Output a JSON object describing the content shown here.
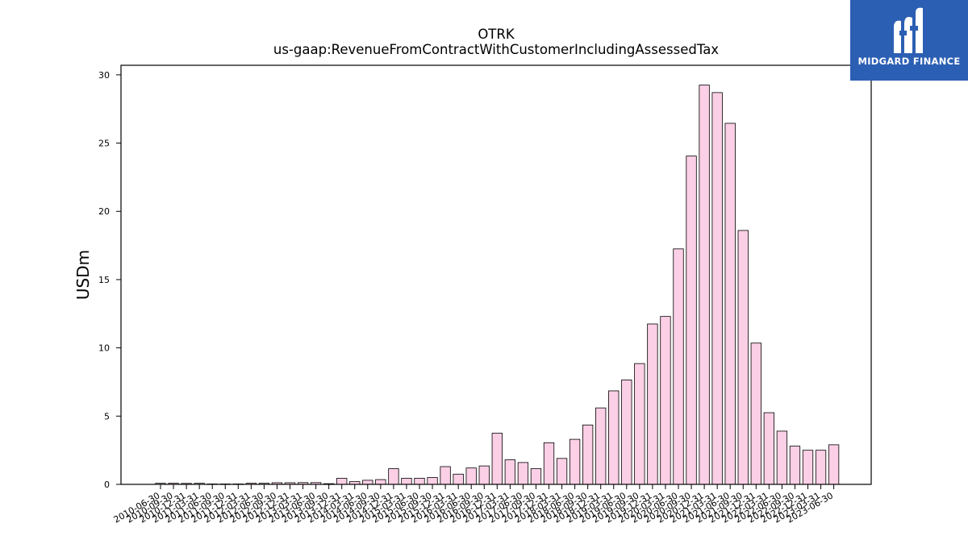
{
  "logo": {
    "text": "MIDGARD FINANCE"
  },
  "colors": {
    "bar_fill": "#fbcfe5",
    "bar_edge": "#000000",
    "logo_bg": "#2b5fb3"
  },
  "chart_data": {
    "type": "bar",
    "title": "OTRK",
    "subtitle": "us-gaap:RevenueFromContractWithCustomerIncludingAssessedTax",
    "xlabel": "",
    "ylabel": "USDm",
    "ylim": [
      0,
      30.7
    ],
    "yticks": [
      0,
      5,
      10,
      15,
      20,
      25,
      30
    ],
    "grid": false,
    "categories": [
      "2010-06-30",
      "2010-09-30",
      "2010-12-31",
      "2011-03-31",
      "2011-06-30",
      "2011-09-30",
      "2011-12-31",
      "2012-03-31",
      "2012-06-30",
      "2012-09-30",
      "2012-12-31",
      "2013-03-31",
      "2013-06-30",
      "2013-09-30",
      "2013-12-31",
      "2014-03-31",
      "2014-06-30",
      "2014-09-30",
      "2014-12-31",
      "2015-03-31",
      "2015-06-30",
      "2015-09-30",
      "2015-12-31",
      "2016-03-31",
      "2016-06-30",
      "2016-09-30",
      "2016-12-31",
      "2017-03-31",
      "2017-06-30",
      "2017-09-30",
      "2017-12-31",
      "2018-03-31",
      "2018-06-30",
      "2018-09-30",
      "2018-12-31",
      "2019-03-31",
      "2019-06-30",
      "2019-09-30",
      "2019-12-31",
      "2020-03-31",
      "2020-06-30",
      "2020-09-30",
      "2020-12-31",
      "2021-03-31",
      "2021-06-30",
      "2021-09-30",
      "2021-12-31",
      "2022-03-31",
      "2022-06-30",
      "2022-09-30",
      "2022-12-31",
      "2023-03-31",
      "2023-06-30"
    ],
    "values": [
      0.08,
      0.08,
      0.07,
      0.08,
      0.03,
      0.03,
      0.03,
      0.08,
      0.08,
      0.12,
      0.12,
      0.13,
      0.13,
      0.05,
      0.45,
      0.2,
      0.3,
      0.35,
      1.15,
      0.45,
      0.45,
      0.5,
      1.3,
      0.75,
      1.2,
      1.35,
      3.75,
      1.8,
      1.6,
      1.15,
      3.05,
      1.9,
      3.3,
      4.35,
      5.6,
      6.85,
      7.65,
      8.85,
      11.75,
      12.3,
      17.25,
      24.05,
      29.25,
      28.7,
      26.45,
      18.6,
      10.35,
      5.25,
      3.9,
      2.8,
      2.5,
      2.5,
      2.9
    ]
  }
}
